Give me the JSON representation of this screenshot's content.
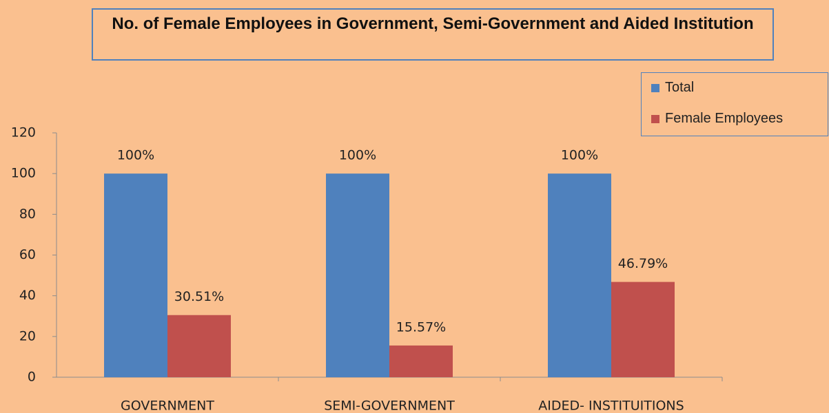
{
  "chart_data": {
    "type": "bar",
    "title": "No. of Female Employees in  Government, Semi-Government and Aided Institution",
    "categories": [
      "GOVERNMENT",
      "SEMI-GOVERNMENT",
      "AIDED- INSTITUITIONS"
    ],
    "series": [
      {
        "name": "Total",
        "color": "#4f81bd",
        "values": [
          100,
          100,
          100
        ],
        "value_labels": [
          "100%",
          "100%",
          "100%"
        ]
      },
      {
        "name": "Female Employees",
        "color": "#c0504d",
        "values": [
          30.51,
          15.57,
          46.79
        ],
        "value_labels": [
          "30.51%",
          "15.57%",
          "46.79%"
        ]
      }
    ],
    "ylim": [
      0,
      120
    ],
    "yticks": [
      0,
      20,
      40,
      60,
      80,
      100,
      120
    ],
    "grid": false,
    "legend": "top-right"
  }
}
